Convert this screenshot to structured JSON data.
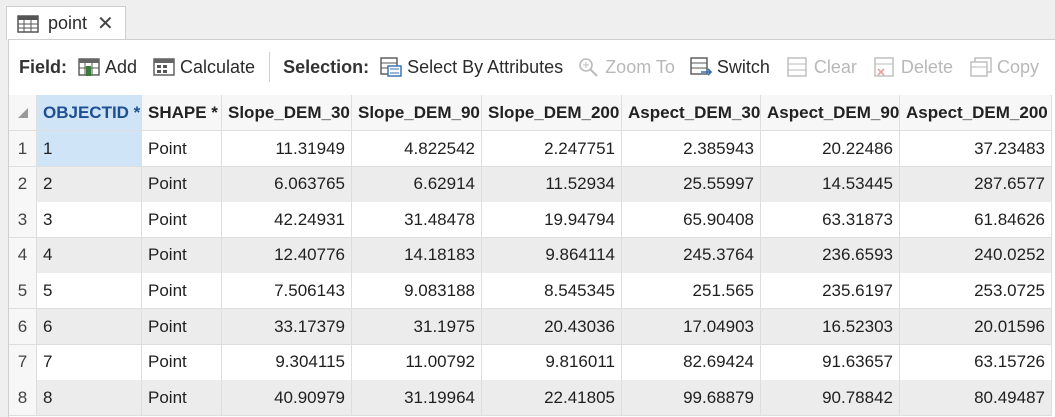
{
  "tab": {
    "title": "point"
  },
  "toolbar": {
    "field_label": "Field:",
    "add": "Add",
    "calculate": "Calculate",
    "selection_label": "Selection:",
    "select_by_attributes": "Select By Attributes",
    "zoom_to": "Zoom To",
    "switch": "Switch",
    "clear": "Clear",
    "delete": "Delete",
    "copy": "Copy"
  },
  "table": {
    "columns": [
      "OBJECTID *",
      "SHAPE *",
      "Slope_DEM_30",
      "Slope_DEM_90",
      "Slope_DEM_200",
      "Aspect_DEM_30",
      "Aspect_DEM_90",
      "Aspect_DEM_200"
    ],
    "rows": [
      {
        "n": "1",
        "cells": [
          "1",
          "Point",
          "11.31949",
          "4.822542",
          "2.247751",
          "2.385943",
          "20.22486",
          "37.23483"
        ]
      },
      {
        "n": "2",
        "cells": [
          "2",
          "Point",
          "6.063765",
          "6.62914",
          "11.52934",
          "25.55997",
          "14.53445",
          "287.6577"
        ]
      },
      {
        "n": "3",
        "cells": [
          "3",
          "Point",
          "42.24931",
          "31.48478",
          "19.94794",
          "65.90408",
          "63.31873",
          "61.84626"
        ]
      },
      {
        "n": "4",
        "cells": [
          "4",
          "Point",
          "12.40776",
          "14.18183",
          "9.864114",
          "245.3764",
          "236.6593",
          "240.0252"
        ]
      },
      {
        "n": "5",
        "cells": [
          "5",
          "Point",
          "7.506143",
          "9.083188",
          "8.545345",
          "251.565",
          "235.6197",
          "253.0725"
        ]
      },
      {
        "n": "6",
        "cells": [
          "6",
          "Point",
          "33.17379",
          "31.1975",
          "20.43036",
          "17.04903",
          "16.52303",
          "20.01596"
        ]
      },
      {
        "n": "7",
        "cells": [
          "7",
          "Point",
          "9.304115",
          "11.00792",
          "9.816011",
          "82.69424",
          "91.63657",
          "63.15726"
        ]
      },
      {
        "n": "8",
        "cells": [
          "8",
          "Point",
          "40.90979",
          "31.19964",
          "22.41805",
          "99.68879",
          "90.78842",
          "80.49487"
        ]
      }
    ]
  }
}
